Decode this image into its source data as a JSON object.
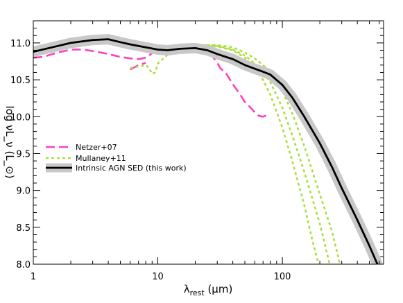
{
  "chart_data": {
    "type": "line",
    "title": "",
    "xlabel": "λ_rest (μm)",
    "xlabel_main": "λ",
    "xlabel_sub": "rest",
    "xlabel_unit": " (μm)",
    "ylabel": "log νL_ν (L_⊙)",
    "xscale": "log",
    "xlim": [
      1,
      650
    ],
    "ylim": [
      8.0,
      11.3
    ],
    "grid": false,
    "legend_position": "left",
    "x_ticks": [
      {
        "value": 1,
        "label": "1"
      },
      {
        "value": 10,
        "label": "10"
      },
      {
        "value": 100,
        "label": "100"
      }
    ],
    "y_ticks": [
      {
        "value": 8.0,
        "label": "8.0"
      },
      {
        "value": 8.5,
        "label": "8.5"
      },
      {
        "value": 9.0,
        "label": "9.0"
      },
      {
        "value": 9.5,
        "label": "9.5"
      },
      {
        "value": 10.0,
        "label": "10.0"
      },
      {
        "value": 10.5,
        "label": "10.5"
      },
      {
        "value": 11.0,
        "label": "11.0"
      }
    ],
    "series": [
      {
        "name": "Netzer+07",
        "color": "#ff3fbf",
        "style": "dashed",
        "segments": [
          [
            [
              1.0,
              10.8
            ],
            [
              1.2,
              10.81
            ],
            [
              1.5,
              10.86
            ],
            [
              2.0,
              10.91
            ],
            [
              2.5,
              10.91
            ],
            [
              3.0,
              10.89
            ],
            [
              4.0,
              10.85
            ],
            [
              5.0,
              10.81
            ],
            [
              6.0,
              10.79
            ],
            [
              7.0,
              10.78
            ],
            [
              8.0,
              10.8
            ],
            [
              9.0,
              10.86
            ],
            [
              10.0,
              10.91
            ],
            [
              11.0,
              10.93
            ],
            [
              12.0,
              10.9
            ],
            [
              14.0,
              10.88
            ],
            [
              16.0,
              10.9
            ],
            [
              18.0,
              10.94
            ],
            [
              20.0,
              10.96
            ],
            [
              22.0,
              10.95
            ],
            [
              25.0,
              10.88
            ],
            [
              28.0,
              10.8
            ],
            [
              30.0,
              10.73
            ],
            [
              32.0,
              10.65
            ],
            [
              35.0,
              10.6
            ],
            [
              40.0,
              10.44
            ],
            [
              45.0,
              10.32
            ],
            [
              50.0,
              10.2
            ],
            [
              55.0,
              10.13
            ],
            [
              60.0,
              10.06
            ],
            [
              65.0,
              10.01
            ],
            [
              70.0,
              10.0
            ],
            [
              75.0,
              10.02
            ]
          ],
          [
            [
              6.0,
              10.64
            ],
            [
              6.5,
              10.67
            ],
            [
              7.0,
              10.7
            ],
            [
              8.0,
              10.73
            ]
          ]
        ]
      },
      {
        "name": "Mullaney+11",
        "color": "#a9e03c",
        "style": "dotted",
        "segments": [
          [
            [
              6.0,
              10.66
            ],
            [
              7.0,
              10.68
            ],
            [
              8.0,
              10.7
            ],
            [
              8.5,
              10.66
            ],
            [
              9.0,
              10.58
            ],
            [
              9.5,
              10.6
            ],
            [
              10.0,
              10.72
            ],
            [
              12.0,
              10.84
            ],
            [
              15.0,
              10.91
            ],
            [
              20.0,
              10.96
            ],
            [
              25.0,
              10.96
            ],
            [
              30.0,
              10.95
            ],
            [
              40.0,
              10.9
            ],
            [
              50.0,
              10.8
            ],
            [
              60.0,
              10.66
            ],
            [
              70.0,
              10.5
            ],
            [
              80.0,
              10.3
            ],
            [
              100.0,
              9.85
            ],
            [
              120.0,
              9.4
            ],
            [
              150.0,
              8.8
            ],
            [
              170.0,
              8.4
            ],
            [
              195.0,
              8.0
            ]
          ],
          [
            [
              12.0,
              10.86
            ],
            [
              15.0,
              10.92
            ],
            [
              20.0,
              10.97
            ],
            [
              25.0,
              10.97
            ],
            [
              30.0,
              10.96
            ],
            [
              40.0,
              10.91
            ],
            [
              50.0,
              10.83
            ],
            [
              60.0,
              10.72
            ],
            [
              70.0,
              10.6
            ],
            [
              80.0,
              10.47
            ],
            [
              100.0,
              10.12
            ],
            [
              120.0,
              9.75
            ],
            [
              150.0,
              9.25
            ],
            [
              200.0,
              8.55
            ],
            [
              240.0,
              8.0
            ]
          ],
          [
            [
              15.0,
              10.93
            ],
            [
              20.0,
              10.97
            ],
            [
              30.0,
              10.97
            ],
            [
              40.0,
              10.94
            ],
            [
              50.0,
              10.87
            ],
            [
              60.0,
              10.79
            ],
            [
              70.0,
              10.7
            ],
            [
              80.0,
              10.6
            ],
            [
              100.0,
              10.35
            ],
            [
              120.0,
              10.05
            ],
            [
              150.0,
              9.6
            ],
            [
              200.0,
              8.95
            ],
            [
              250.0,
              8.45
            ],
            [
              290.0,
              8.0
            ]
          ]
        ]
      },
      {
        "name": "Intrinsic AGN SED (this work)",
        "color": "#000000",
        "band_color": "#c8c8c8",
        "style": "solid",
        "segments": [
          [
            [
              1.0,
              10.88
            ],
            [
              1.5,
              10.95
            ],
            [
              2.0,
              11.0
            ],
            [
              3.0,
              11.04
            ],
            [
              4.0,
              11.05
            ],
            [
              5.0,
              11.01
            ],
            [
              6.0,
              10.98
            ],
            [
              8.0,
              10.94
            ],
            [
              10.0,
              10.91
            ],
            [
              12.0,
              10.9
            ],
            [
              15.0,
              10.92
            ],
            [
              20.0,
              10.93
            ],
            [
              25.0,
              10.9
            ],
            [
              30.0,
              10.85
            ],
            [
              40.0,
              10.78
            ],
            [
              50.0,
              10.7
            ],
            [
              60.0,
              10.65
            ],
            [
              70.0,
              10.61
            ],
            [
              80.0,
              10.57
            ],
            [
              100.0,
              10.43
            ],
            [
              120.0,
              10.26
            ],
            [
              150.0,
              10.0
            ],
            [
              200.0,
              9.64
            ],
            [
              250.0,
              9.32
            ],
            [
              300.0,
              9.03
            ],
            [
              400.0,
              8.6
            ],
            [
              500.0,
              8.25
            ],
            [
              580.0,
              8.0
            ]
          ]
        ]
      }
    ]
  }
}
